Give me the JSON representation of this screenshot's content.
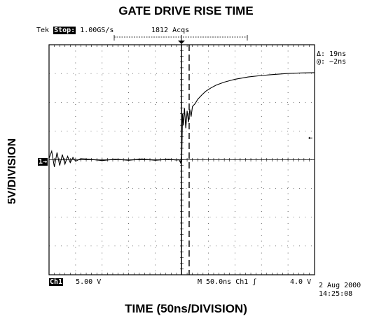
{
  "chart_data": {
    "type": "line",
    "title": "GATE DRIVE RISE TIME",
    "xlabel": "TIME (50ns/DIVISION)",
    "ylabel": "5V/DIVISION",
    "grid": true,
    "xlim": [
      0,
      10
    ],
    "ylim": [
      -4,
      4
    ],
    "x_unit": "divisions",
    "y_unit": "divisions",
    "series": [
      {
        "x": [
          0,
          0.1,
          0.2,
          0.3,
          0.4,
          0.5,
          0.6,
          0.7,
          0.8,
          0.9,
          1.0,
          1.2,
          1.5,
          2.0,
          2.5,
          3.0,
          3.5,
          4.0,
          4.5,
          4.8,
          4.9,
          4.95,
          5.0,
          5.03,
          5.06,
          5.1,
          5.15,
          5.2,
          5.25,
          5.3,
          5.35,
          5.4,
          5.5,
          5.6,
          5.75,
          5.9,
          6.1,
          6.3,
          6.6,
          7.0,
          7.5,
          8.0,
          8.5,
          9.0,
          9.5,
          10.0
        ],
        "y": [
          0.05,
          0.3,
          -0.25,
          0.25,
          -0.2,
          0.18,
          -0.15,
          0.12,
          -0.1,
          0.08,
          -0.05,
          0.04,
          0.02,
          -0.03,
          0.02,
          -0.02,
          0.03,
          -0.02,
          0.02,
          -0.01,
          0.0,
          -0.1,
          0.2,
          1.6,
          1.2,
          1.8,
          1.1,
          1.7,
          1.3,
          1.75,
          1.5,
          1.85,
          1.95,
          2.1,
          2.25,
          2.38,
          2.5,
          2.6,
          2.7,
          2.8,
          2.88,
          2.93,
          2.97,
          3.0,
          3.02,
          3.03
        ]
      }
    ]
  },
  "scope": {
    "brand": "Tek",
    "mode": "Stop:",
    "sample_rate": "1.00GS/s",
    "acqs": "1812 Acqs",
    "cursor_delta": "Δ: 19ns",
    "cursor_at": "@: −2ns",
    "ch_label": "Ch1",
    "ch_scale": "5.00 V",
    "timebase": "M 50.0ns",
    "trig_source": "Ch1",
    "trig_slope": "ʃ",
    "trig_level": "4.0 V",
    "date": "2 Aug 2000",
    "time": "14:25:08",
    "ground_marker": "1→",
    "trigger_marker": "←"
  }
}
